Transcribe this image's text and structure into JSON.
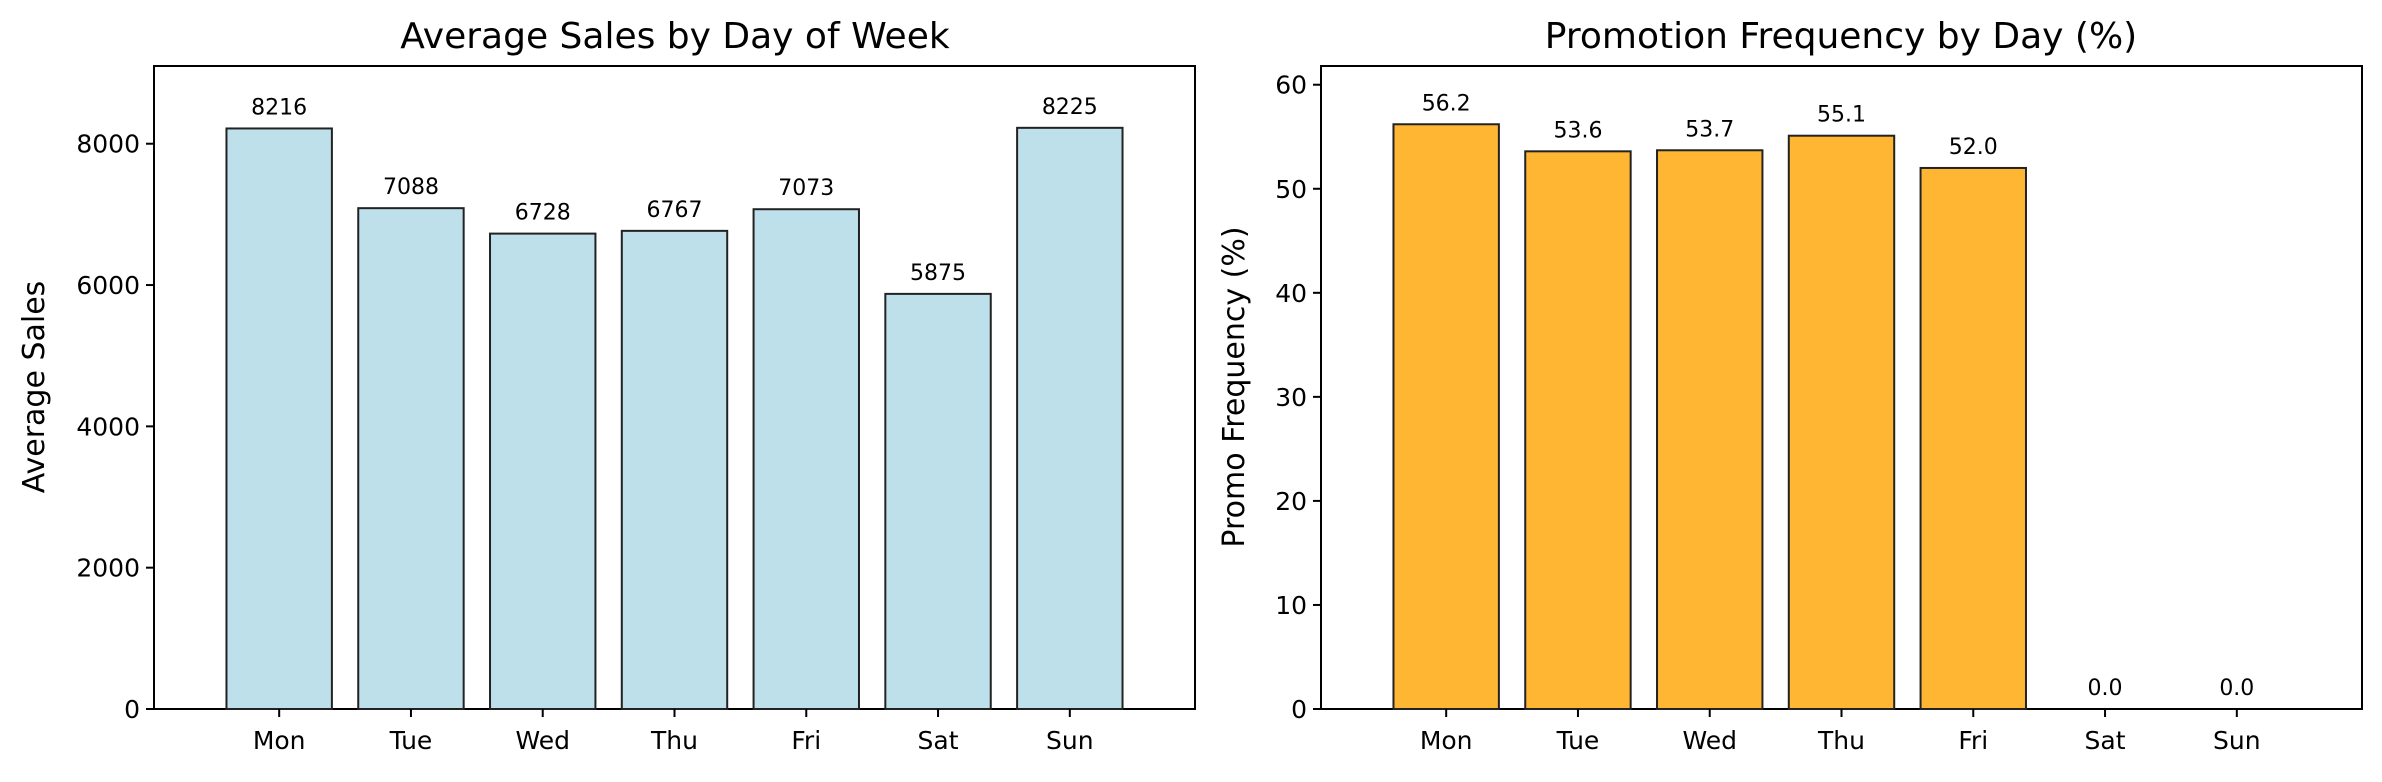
{
  "chart_data": [
    {
      "type": "bar",
      "title": "Average Sales by Day of Week",
      "xlabel": "",
      "ylabel": "Average Sales",
      "categories": [
        "Mon",
        "Tue",
        "Wed",
        "Thu",
        "Fri",
        "Sat",
        "Sun"
      ],
      "values": [
        8216,
        7088,
        6728,
        6767,
        7073,
        5875,
        8225
      ],
      "value_labels": [
        "8216",
        "7088",
        "6728",
        "6767",
        "7073",
        "5875",
        "8225"
      ],
      "ylim": [
        0,
        9100
      ],
      "yticks": [
        0,
        2000,
        4000,
        6000,
        8000
      ],
      "ytick_labels": [
        "0",
        "2000",
        "4000",
        "6000",
        "8000"
      ],
      "bar_color": "#add8e6",
      "edge_color": "#222222",
      "grid": false,
      "legend": "none"
    },
    {
      "type": "bar",
      "title": "Promotion Frequency by Day (%)",
      "xlabel": "",
      "ylabel": "Promo Frequency (%)",
      "categories": [
        "Mon",
        "Tue",
        "Wed",
        "Thu",
        "Fri",
        "Sat",
        "Sun"
      ],
      "values": [
        56.2,
        53.6,
        53.7,
        55.1,
        52.0,
        0.0,
        0.0
      ],
      "value_labels": [
        "56.2",
        "53.6",
        "53.7",
        "55.1",
        "52.0",
        "0.0",
        "0.0"
      ],
      "ylim": [
        0,
        61.8
      ],
      "yticks": [
        0,
        10,
        20,
        30,
        40,
        50,
        60
      ],
      "ytick_labels": [
        "0",
        "10",
        "20",
        "30",
        "40",
        "50",
        "60"
      ],
      "bar_color": "#ffa500",
      "edge_color": "#222222",
      "grid": false,
      "legend": "none"
    }
  ]
}
